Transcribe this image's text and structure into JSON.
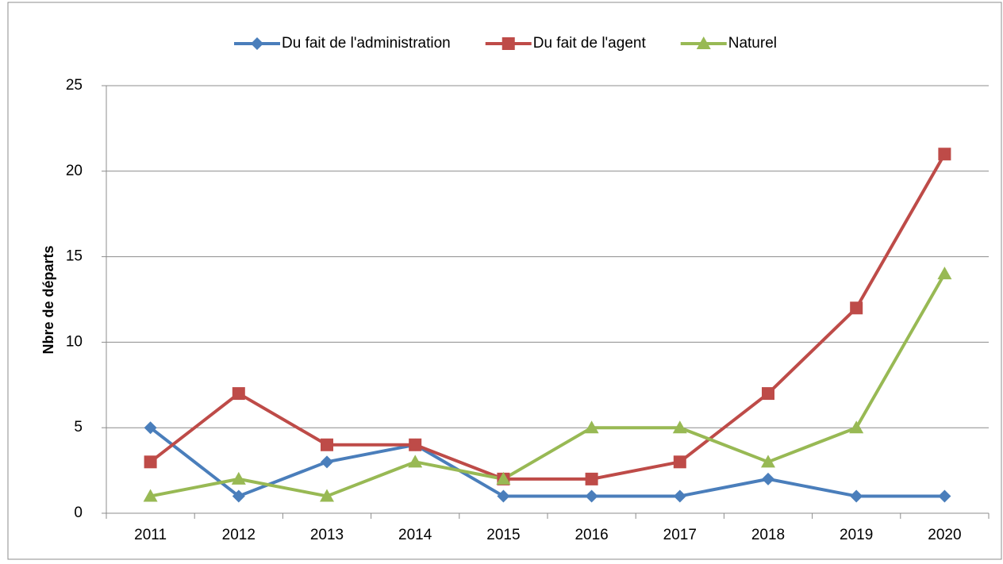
{
  "chart_data": {
    "type": "line",
    "y_label": "Nbre de départs",
    "categories": [
      "2011",
      "2012",
      "2013",
      "2014",
      "2015",
      "2016",
      "2017",
      "2018",
      "2019",
      "2020"
    ],
    "series": [
      {
        "name": "Du fait de l'administration",
        "color": "#4a7ebb",
        "marker": "diamond",
        "values": [
          5,
          1,
          3,
          4,
          1,
          1,
          1,
          2,
          1,
          1
        ]
      },
      {
        "name": "Du fait de l'agent",
        "color": "#be4b48",
        "marker": "square",
        "values": [
          3,
          7,
          4,
          4,
          2,
          2,
          3,
          7,
          12,
          21
        ]
      },
      {
        "name": "Naturel",
        "color": "#98b954",
        "marker": "triangle",
        "values": [
          1,
          2,
          1,
          3,
          2,
          5,
          5,
          3,
          5,
          14
        ]
      }
    ],
    "ylim": [
      0,
      25
    ],
    "yticks": [
      0,
      5,
      10,
      15,
      20,
      25
    ],
    "grid": true,
    "legend": "top"
  }
}
